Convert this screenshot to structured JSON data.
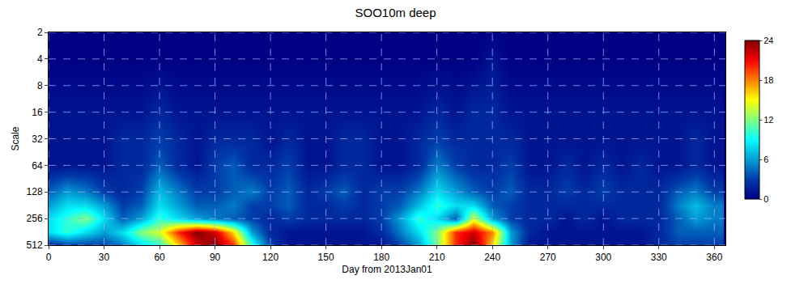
{
  "chart_data": {
    "type": "heatmap",
    "title": "SOO10m deep",
    "x_label": "Day from 2013Jan01",
    "y_label": "Scale",
    "log": "y",
    "grid": true,
    "color": "Jet",
    "xlim": [
      0,
      366
    ],
    "xticks": [
      0,
      30,
      60,
      90,
      120,
      150,
      180,
      210,
      240,
      270,
      300,
      330,
      360
    ],
    "ylim": [
      512,
      2
    ],
    "yticks": [
      2,
      4,
      8,
      16,
      32,
      64,
      128,
      256,
      512
    ],
    "x": [
      0,
      10,
      20,
      30,
      40,
      50,
      60,
      70,
      80,
      90,
      100,
      110,
      120,
      130,
      140,
      150,
      160,
      170,
      180,
      190,
      200,
      210,
      220,
      230,
      240,
      250,
      260,
      270,
      280,
      290,
      300,
      310,
      320,
      330,
      340,
      350,
      360
    ],
    "y": [
      2,
      4,
      8,
      16,
      32,
      64,
      128,
      181,
      256,
      362,
      512
    ],
    "z": [
      [
        0,
        0,
        0,
        0,
        0,
        0,
        0,
        0,
        0,
        0,
        0,
        0,
        0,
        0,
        0,
        0,
        0,
        0,
        0,
        0,
        0,
        0,
        0,
        0,
        0,
        0,
        0,
        0,
        0,
        0,
        0,
        0,
        0,
        0,
        0,
        0,
        0
      ],
      [
        0,
        0,
        0,
        0,
        0,
        0,
        0,
        0,
        0,
        0,
        0,
        0,
        0,
        0,
        0,
        0,
        0,
        0,
        0,
        0,
        0,
        0,
        0,
        0,
        1,
        0,
        0,
        0,
        0,
        0,
        0,
        0,
        0,
        0,
        0,
        0,
        0
      ],
      [
        0.5,
        0.5,
        0.5,
        0.5,
        0.5,
        0.5,
        1,
        0.5,
        0.5,
        0.5,
        0.5,
        0.5,
        0.5,
        0.5,
        0.5,
        0.5,
        0.5,
        0.5,
        0.5,
        0.5,
        0.5,
        1,
        0.5,
        1,
        1.5,
        0.5,
        0.5,
        0.5,
        0.5,
        0.5,
        0.5,
        0.5,
        0.5,
        0.5,
        0.5,
        0.5,
        0.5
      ],
      [
        1,
        1,
        1,
        1,
        1,
        1,
        2,
        1,
        1,
        1,
        1,
        1,
        1,
        1,
        1,
        1,
        1,
        1,
        1,
        1,
        1,
        2,
        1,
        2,
        2,
        1,
        1,
        1,
        1,
        1,
        1,
        1,
        1,
        1,
        1,
        1,
        1
      ],
      [
        1,
        1,
        1,
        1,
        2,
        2,
        3,
        2,
        1,
        2,
        2,
        2,
        1,
        2,
        1,
        1,
        2,
        2,
        1,
        1,
        2,
        3,
        2,
        2,
        2,
        2,
        1,
        1,
        1,
        1,
        1,
        1,
        1,
        1,
        1,
        2,
        1
      ],
      [
        1,
        1,
        1,
        1,
        2,
        2,
        4,
        2,
        1,
        3,
        4,
        2,
        2,
        3,
        1,
        1,
        2,
        2,
        1,
        1,
        2,
        5,
        3,
        2,
        2,
        3,
        1,
        1,
        2,
        1,
        2,
        1,
        2,
        1,
        1,
        2,
        1
      ],
      [
        4,
        6,
        5,
        3,
        2,
        3,
        7,
        5,
        3,
        3,
        4,
        5,
        3,
        4,
        2,
        3,
        4,
        2,
        3,
        3,
        5,
        8,
        6,
        4,
        3,
        4,
        2,
        2,
        3,
        2,
        3,
        2,
        2,
        2,
        4,
        5,
        3
      ],
      [
        6,
        8,
        8,
        6,
        3,
        4,
        8,
        6,
        4,
        4,
        5,
        3,
        3,
        4,
        2,
        2,
        3,
        2,
        3,
        4,
        7,
        10,
        8,
        8,
        4,
        3,
        2,
        2,
        2,
        2,
        2,
        2,
        2,
        2,
        5,
        7,
        5
      ],
      [
        8,
        10,
        12,
        8,
        4,
        6,
        10,
        8,
        6,
        5,
        4,
        3,
        2,
        3,
        2,
        2,
        2,
        2,
        3,
        6,
        10,
        8,
        4,
        14,
        6,
        3,
        2,
        2,
        1,
        2,
        1,
        2,
        2,
        2,
        4,
        6,
        5
      ],
      [
        8,
        10,
        8,
        6,
        8,
        12,
        14,
        20,
        24,
        22,
        16,
        6,
        2,
        1,
        1,
        1,
        1,
        1,
        2,
        5,
        8,
        12,
        20,
        22,
        18,
        6,
        2,
        1,
        1,
        1,
        1,
        1,
        1,
        2,
        4,
        4,
        4
      ],
      [
        2,
        3,
        3,
        3,
        5,
        8,
        10,
        16,
        22,
        24,
        20,
        10,
        3,
        1,
        1,
        1,
        1,
        1,
        1,
        3,
        6,
        12,
        20,
        24,
        16,
        6,
        1,
        1,
        1,
        1,
        1,
        1,
        1,
        2,
        3,
        3,
        3
      ]
    ],
    "colorbar": {
      "range": [
        0,
        24
      ],
      "ticks": [
        0,
        6,
        12,
        18,
        24
      ]
    }
  }
}
